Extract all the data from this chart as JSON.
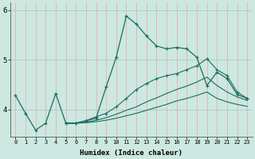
{
  "xlabel": "Humidex (Indice chaleur)",
  "bg_color": "#cce8e0",
  "grid_color_h": "#aaccc4",
  "grid_color_v": "#e8b0b0",
  "line_color": "#1a6e60",
  "xlim": [
    -0.5,
    23.5
  ],
  "ylim": [
    3.45,
    6.15
  ],
  "yticks": [
    4,
    5,
    6
  ],
  "xticks": [
    0,
    1,
    2,
    3,
    4,
    5,
    6,
    7,
    8,
    9,
    10,
    11,
    12,
    13,
    14,
    15,
    16,
    17,
    18,
    19,
    20,
    21,
    22,
    23
  ],
  "line1_x": [
    0,
    1,
    2,
    3,
    4,
    5,
    6,
    7,
    8,
    9,
    10,
    11,
    12,
    13,
    14,
    15,
    16,
    17,
    18,
    19,
    20,
    21,
    22,
    23
  ],
  "line1_y": [
    4.28,
    3.92,
    3.58,
    3.72,
    4.32,
    3.72,
    3.72,
    3.77,
    3.82,
    4.45,
    5.05,
    5.88,
    5.72,
    5.48,
    5.28,
    5.22,
    5.25,
    5.22,
    5.05,
    4.48,
    4.75,
    4.62,
    4.3,
    4.22
  ],
  "line2_x": [
    5,
    6,
    7,
    8,
    9,
    10,
    11,
    12,
    13,
    14,
    15,
    16,
    17,
    18,
    19,
    20,
    21,
    22,
    23
  ],
  "line2_y": [
    3.72,
    3.72,
    3.77,
    3.85,
    3.92,
    4.05,
    4.22,
    4.4,
    4.52,
    4.62,
    4.68,
    4.72,
    4.8,
    4.88,
    5.02,
    4.8,
    4.68,
    4.35,
    4.22
  ],
  "line3_x": [
    5,
    6,
    7,
    8,
    9,
    10,
    11,
    12,
    13,
    14,
    15,
    16,
    17,
    18,
    19,
    20,
    21,
    22,
    23
  ],
  "line3_y": [
    3.72,
    3.72,
    3.74,
    3.78,
    3.83,
    3.9,
    3.98,
    4.05,
    4.15,
    4.23,
    4.32,
    4.4,
    4.47,
    4.55,
    4.65,
    4.48,
    4.35,
    4.25,
    4.18
  ],
  "line4_x": [
    5,
    6,
    7,
    8,
    9,
    10,
    11,
    12,
    13,
    14,
    15,
    16,
    17,
    18,
    19,
    20,
    21,
    22,
    23
  ],
  "line4_y": [
    3.72,
    3.72,
    3.73,
    3.75,
    3.78,
    3.82,
    3.87,
    3.92,
    3.98,
    4.04,
    4.1,
    4.17,
    4.22,
    4.28,
    4.35,
    4.22,
    4.15,
    4.1,
    4.06
  ]
}
